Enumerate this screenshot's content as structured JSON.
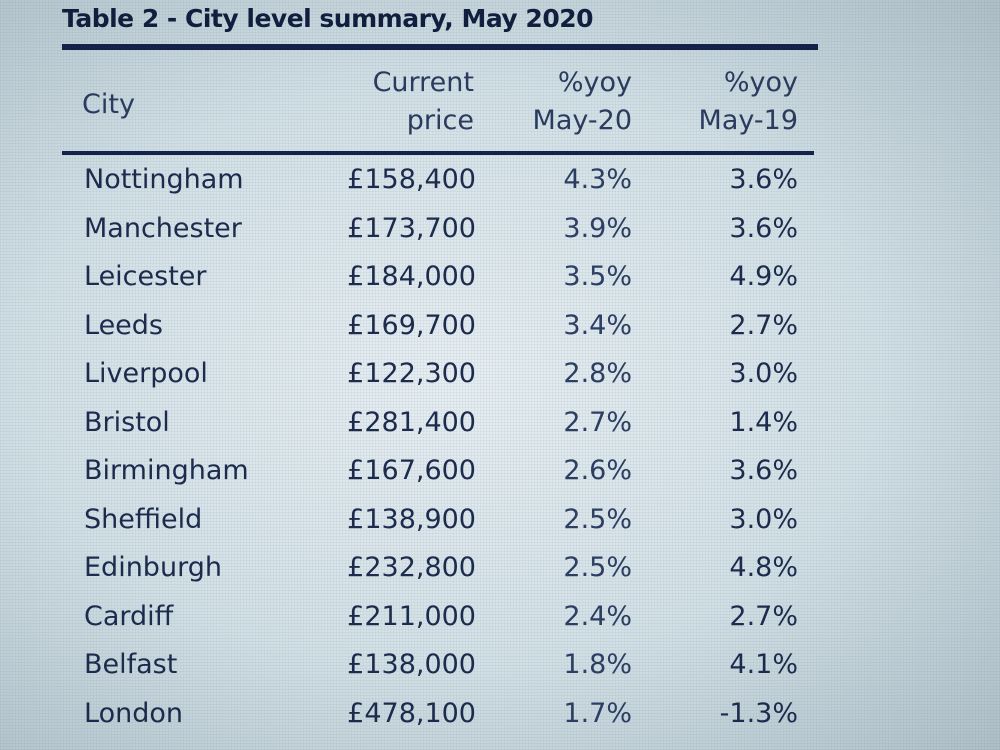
{
  "table": {
    "title": "Table 2 - City level summary, May 2020",
    "headers": {
      "city": "City",
      "price_line1": "Current",
      "price_line2": "price",
      "yoy20_line1": "%yoy",
      "yoy20_line2": "May-20",
      "yoy19_line1": "%yoy",
      "yoy19_line2": "May-19"
    },
    "rows": [
      {
        "city": "Nottingham",
        "price": "£158,400",
        "yoy20": "4.3%",
        "yoy19": "3.6%"
      },
      {
        "city": "Manchester",
        "price": "£173,700",
        "yoy20": "3.9%",
        "yoy19": "3.6%"
      },
      {
        "city": "Leicester",
        "price": "£184,000",
        "yoy20": "3.5%",
        "yoy19": "4.9%"
      },
      {
        "city": "Leeds",
        "price": "£169,700",
        "yoy20": "3.4%",
        "yoy19": "2.7%"
      },
      {
        "city": "Liverpool",
        "price": "£122,300",
        "yoy20": "2.8%",
        "yoy19": "3.0%"
      },
      {
        "city": "Bristol",
        "price": "£281,400",
        "yoy20": "2.7%",
        "yoy19": "1.4%"
      },
      {
        "city": "Birmingham",
        "price": "£167,600",
        "yoy20": "2.6%",
        "yoy19": "3.6%"
      },
      {
        "city": "Sheffield",
        "price": "£138,900",
        "yoy20": "2.5%",
        "yoy19": "3.0%"
      },
      {
        "city": "Edinburgh",
        "price": "£232,800",
        "yoy20": "2.5%",
        "yoy19": "4.8%"
      },
      {
        "city": "Cardiff",
        "price": "£211,000",
        "yoy20": "2.4%",
        "yoy19": "2.7%"
      },
      {
        "city": "Belfast",
        "price": "£138,000",
        "yoy20": "1.8%",
        "yoy19": "4.1%"
      },
      {
        "city": "London",
        "price": "£478,100",
        "yoy20": "1.7%",
        "yoy19": "-1.3%"
      }
    ]
  }
}
